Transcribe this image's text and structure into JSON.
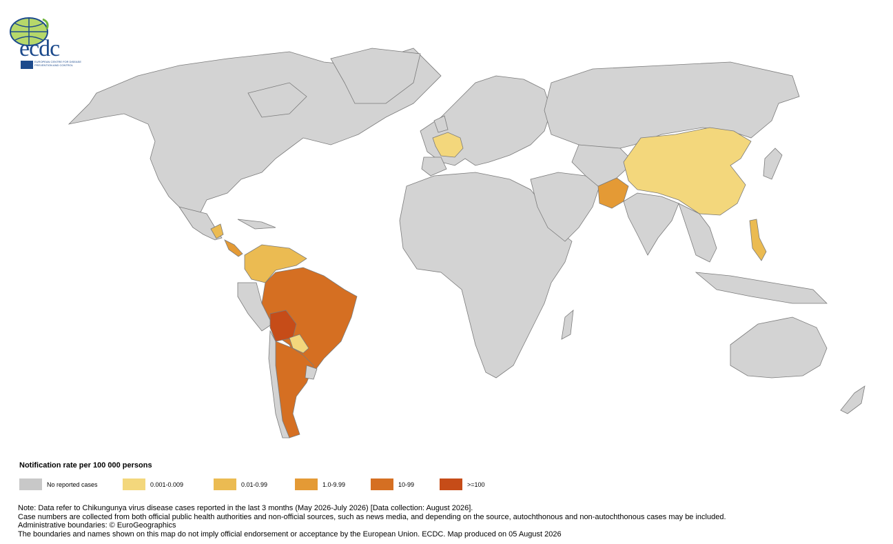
{
  "logo": {
    "name": "ecdc",
    "subtitle": "EUROPEAN CENTRE FOR DISEASE PREVENTION AND CONTROL"
  },
  "legend": {
    "title": "Notification rate per 100 000 persons",
    "items": [
      {
        "label": "No reported cases",
        "color": "#c8c8c8"
      },
      {
        "label": "0.001-0.009",
        "color": "#f3d77c"
      },
      {
        "label": "0.01-0.99",
        "color": "#ebbb52"
      },
      {
        "label": "1.0-9.99",
        "color": "#e49a35"
      },
      {
        "label": "10-99",
        "color": "#d56f22"
      },
      {
        "label": ">=100",
        "color": "#c64c18"
      }
    ]
  },
  "regions": {
    "0.001-0.009": [
      "France",
      "China",
      "Paraguay"
    ],
    "0.01-0.99": [
      "Colombia",
      "Venezuela",
      "Guyana",
      "Philippines",
      "Mexico-south"
    ],
    "1.0-9.99": [
      "Pakistan",
      "Central America"
    ],
    "10-99": [
      "Brazil",
      "Argentina",
      "Peru-east"
    ],
    ">=100": [
      "Bolivia"
    ]
  },
  "notes": {
    "line1": "Note: Data refer to Chikungunya virus disease cases reported in the last 3 months (May 2026-July 2026) [Data collection: August 2026].",
    "line2": "Case numbers are collected from both official public health authorities and non-official sources, such as news media, and depending on the source, autochthonous and non-autochthonous cases may be included.",
    "line3": "Administrative boundaries: © EuroGeographics",
    "line4": "The boundaries and names shown on this map do not imply official endorsement or acceptance by the European Union. ECDC. Map produced on 05 August 2026"
  }
}
